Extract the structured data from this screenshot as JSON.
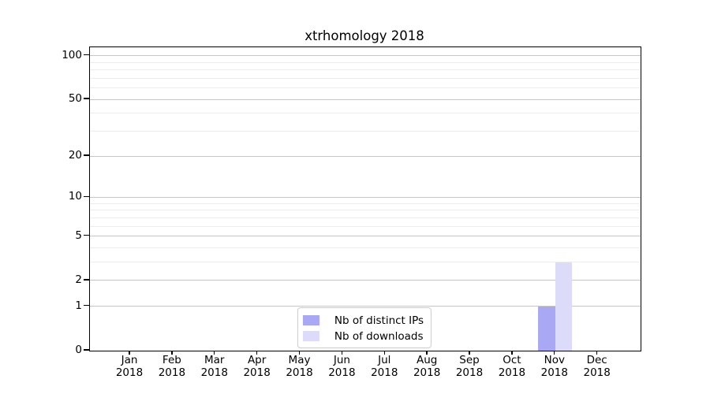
{
  "chart_data": {
    "type": "bar",
    "title": "xtrhomology 2018",
    "x_tick_months": [
      "Jan",
      "Feb",
      "Mar",
      "Apr",
      "May",
      "Jun",
      "Jul",
      "Aug",
      "Sep",
      "Oct",
      "Nov",
      "Dec"
    ],
    "x_tick_year": "2018",
    "y_ticks_major": [
      0,
      1,
      2,
      5,
      10,
      20,
      50,
      100
    ],
    "y_ticks_minor": [
      3,
      4,
      6,
      7,
      8,
      9,
      30,
      40,
      60,
      70,
      80,
      90
    ],
    "y_scale": "log10(1+v)",
    "ylim": [
      0,
      115
    ],
    "grid": "horizontal-only",
    "legend_position": "lower center",
    "series": [
      {
        "name": "Nb of distinct IPs",
        "color": "#a8a8f5",
        "values": [
          0,
          0,
          0,
          0,
          0,
          0,
          0,
          0,
          0,
          0,
          1,
          0
        ]
      },
      {
        "name": "Nb of downloads",
        "color": "#dcdcfa",
        "values": [
          0,
          0,
          0,
          0,
          0,
          0,
          0,
          0,
          0,
          0,
          3,
          0
        ]
      }
    ]
  }
}
